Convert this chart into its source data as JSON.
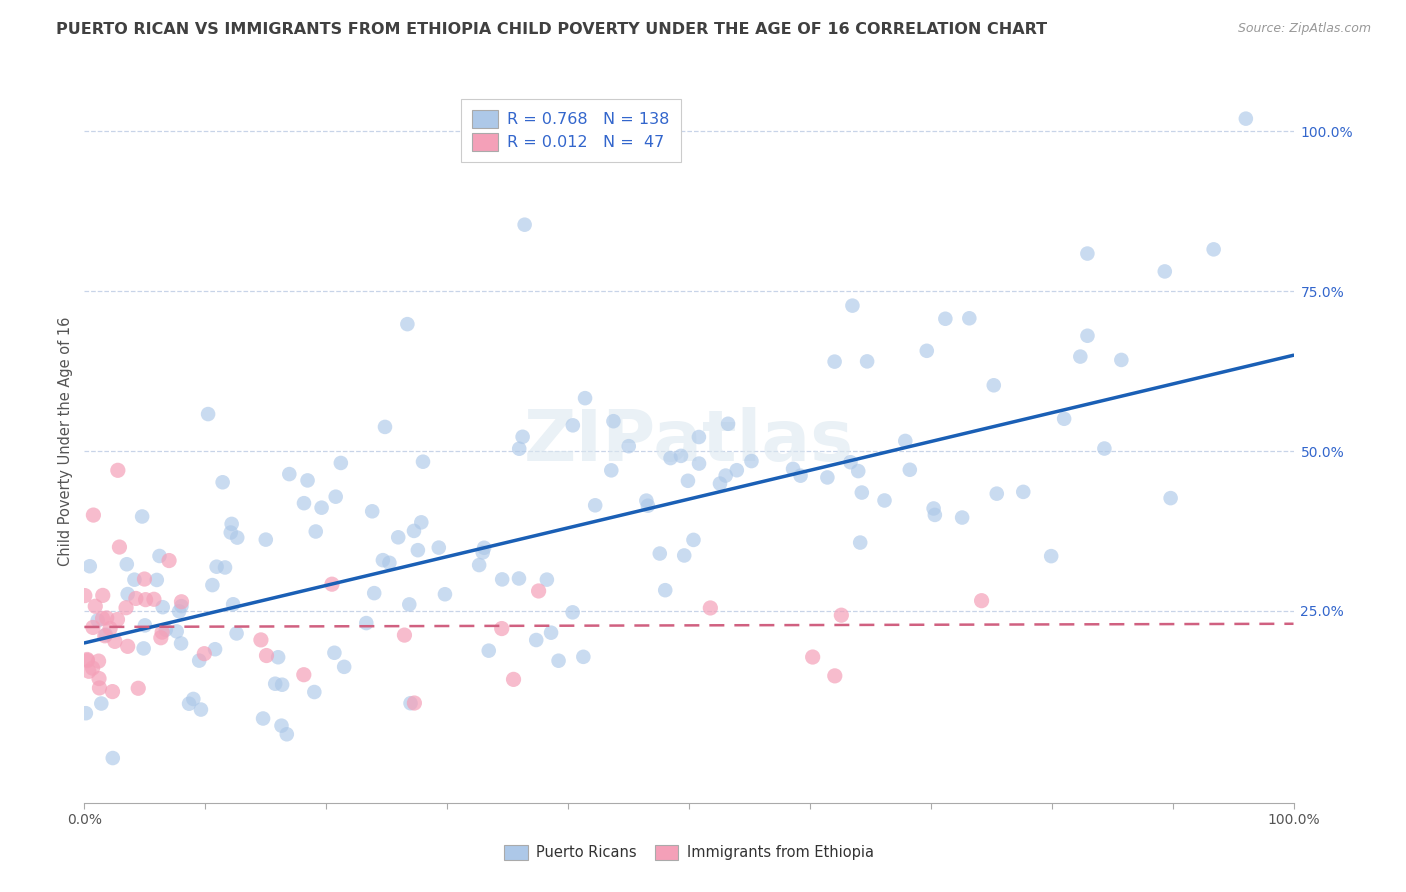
{
  "title": "PUERTO RICAN VS IMMIGRANTS FROM ETHIOPIA CHILD POVERTY UNDER THE AGE OF 16 CORRELATION CHART",
  "source": "Source: ZipAtlas.com",
  "ylabel": "Child Poverty Under the Age of 16",
  "xlim": [
    0.0,
    1.0
  ],
  "ylim": [
    -0.05,
    1.08
  ],
  "ytick_positions": [
    0.25,
    0.5,
    0.75,
    1.0
  ],
  "ytick_labels": [
    "25.0%",
    "50.0%",
    "75.0%",
    "100.0%"
  ],
  "blue_R": 0.768,
  "blue_N": 138,
  "pink_R": 0.012,
  "pink_N": 47,
  "blue_color": "#adc8e8",
  "pink_color": "#f4a0b8",
  "blue_line_color": "#1a5fb5",
  "pink_line_color": "#d06080",
  "blue_line_start_y": 0.2,
  "blue_line_end_y": 0.65,
  "pink_line_y": 0.225,
  "pink_line_slope": 0.005,
  "watermark": "ZIPatlas",
  "background_color": "#ffffff",
  "grid_color": "#c8d4e8",
  "title_color": "#404040",
  "title_fontsize": 11.5,
  "legend_label_blue": "R = 0.768   N = 138",
  "legend_label_pink": "R = 0.012   N =  47",
  "bottom_legend_blue": "Puerto Ricans",
  "bottom_legend_pink": "Immigrants from Ethiopia"
}
